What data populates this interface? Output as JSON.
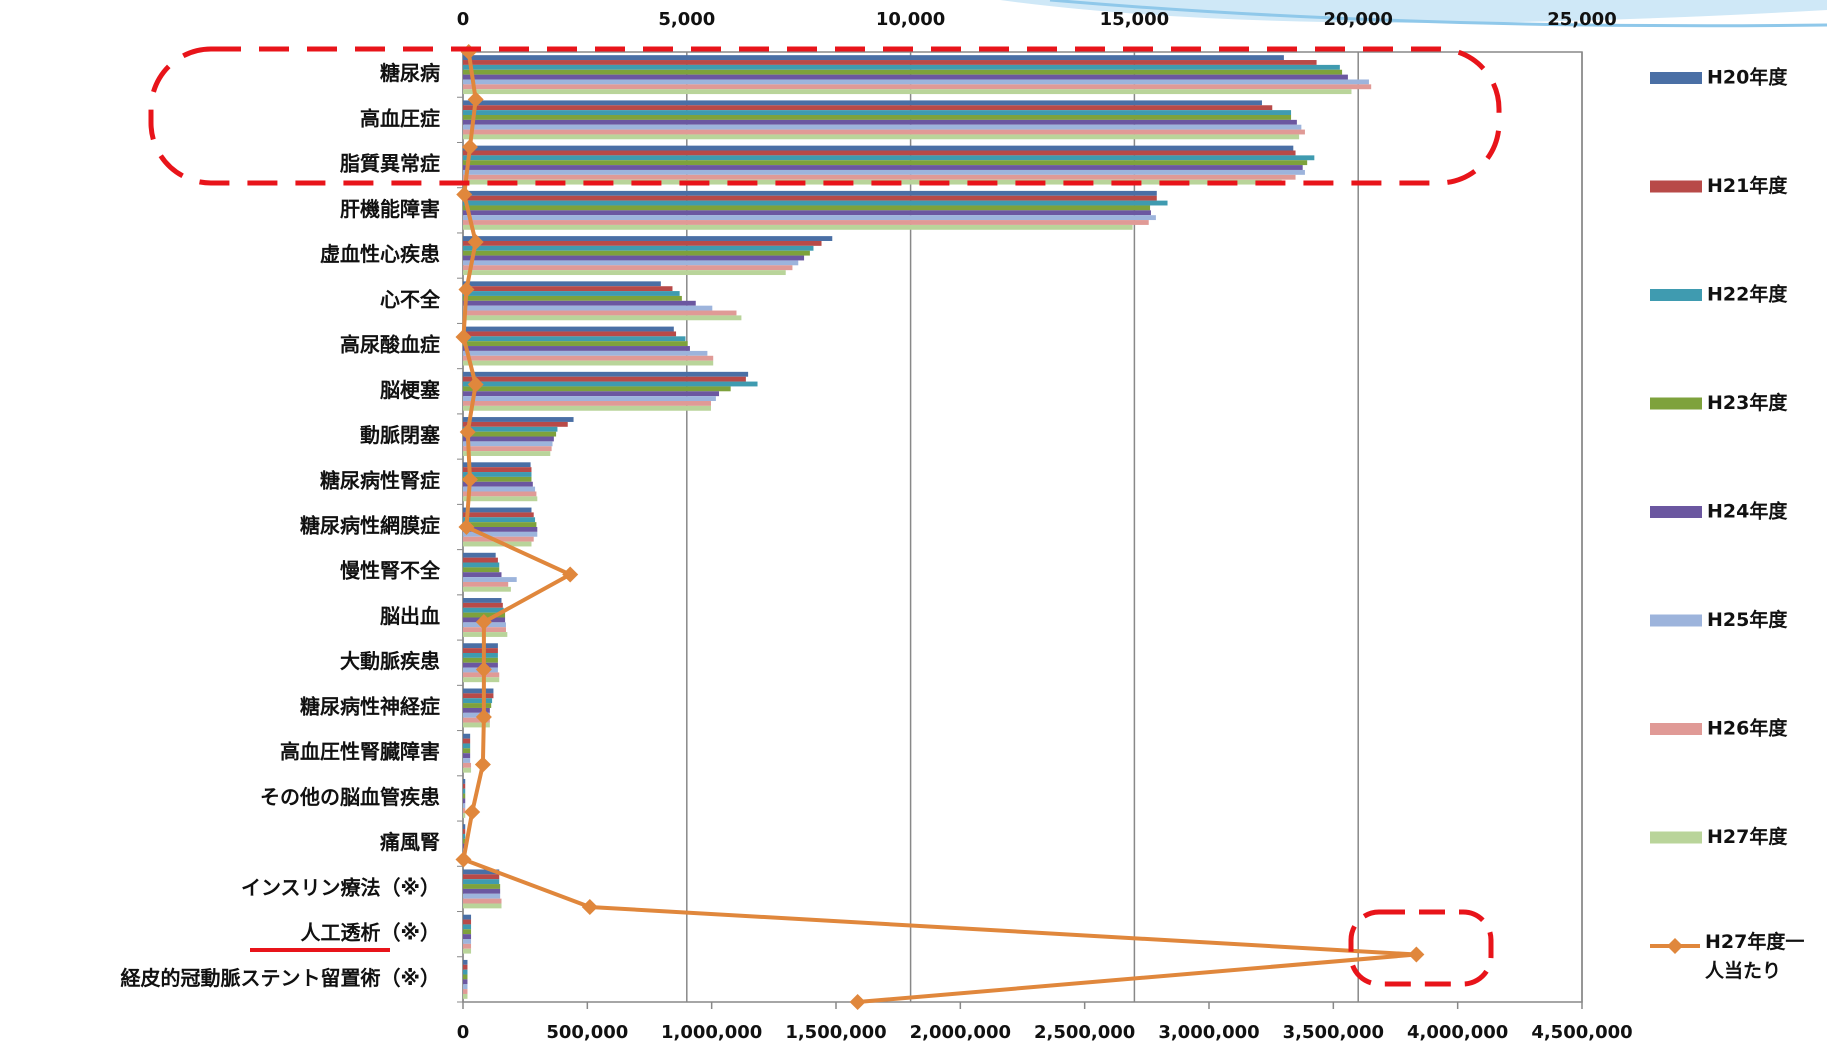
{
  "chart_data": {
    "type": "bar",
    "orientation": "horizontal",
    "categories": [
      "糖尿病",
      "高血圧症",
      "脂質異常症",
      "肝機能障害",
      "虚血性心疾患",
      "心不全",
      "高尿酸血症",
      "脳梗塞",
      "動脈閉塞",
      "糖尿病性腎症",
      "糖尿病性網膜症",
      "慢性腎不全",
      "脳出血",
      "大動脈疾患",
      "糖尿病性神経症",
      "高血圧性腎臓障害",
      "その他の脳血管疾患",
      "痛風腎",
      "インスリン療法（※）",
      "人工透析（※）",
      "経皮的冠動脈ステント留置術（※）"
    ],
    "series": [
      {
        "name": "H20年度",
        "color": "#4a6fa5",
        "values": [
          18340,
          17850,
          18550,
          15500,
          8250,
          4420,
          4710,
          6370,
          2470,
          1510,
          1530,
          730,
          860,
          780,
          680,
          160,
          50,
          50,
          810,
          180,
          100
        ]
      },
      {
        "name": "H21年度",
        "color": "#b84a48",
        "values": [
          19070,
          18080,
          18600,
          15500,
          8010,
          4680,
          4760,
          6320,
          2340,
          1530,
          1580,
          780,
          890,
          780,
          680,
          160,
          50,
          50,
          810,
          180,
          100
        ]
      },
      {
        "name": "H22年度",
        "color": "#3f9bb0",
        "values": [
          19590,
          18500,
          19020,
          15740,
          7830,
          4840,
          4970,
          6580,
          2110,
          1530,
          1610,
          810,
          910,
          780,
          650,
          160,
          50,
          50,
          810,
          180,
          100
        ]
      },
      {
        "name": "H23年度",
        "color": "#7ea23c",
        "values": [
          19640,
          18500,
          18860,
          15350,
          7750,
          4890,
          5020,
          5980,
          2080,
          1530,
          1640,
          810,
          940,
          780,
          630,
          160,
          50,
          50,
          830,
          180,
          100
        ]
      },
      {
        "name": "H24年度",
        "color": "#6b57a0",
        "values": [
          19770,
          18630,
          18760,
          15370,
          7620,
          5200,
          5070,
          5720,
          2030,
          1560,
          1660,
          860,
          940,
          780,
          600,
          160,
          50,
          50,
          830,
          180,
          100
        ]
      },
      {
        "name": "H25年度",
        "color": "#9db4dc",
        "values": [
          20240,
          18730,
          18810,
          15480,
          7490,
          5570,
          5460,
          5650,
          2000,
          1610,
          1660,
          1200,
          960,
          780,
          600,
          160,
          50,
          50,
          830,
          180,
          100
        ]
      },
      {
        "name": "H26年度",
        "color": "#e09a96",
        "values": [
          20290,
          18810,
          18600,
          15320,
          7360,
          6110,
          5590,
          5540,
          1980,
          1640,
          1580,
          1010,
          960,
          810,
          600,
          180,
          50,
          50,
          860,
          180,
          100
        ]
      },
      {
        "name": "H27年度",
        "color": "#b9d49a",
        "values": [
          19850,
          18680,
          18290,
          14960,
          7210,
          6220,
          5590,
          5540,
          1950,
          1660,
          1530,
          1070,
          990,
          810,
          600,
          180,
          50,
          50,
          860,
          180,
          100
        ]
      },
      {
        "name": "H27年度一人当たり",
        "color": "#e0873c",
        "type": "line",
        "axis": "x2",
        "values": [
          23000,
          51000,
          28000,
          5000,
          51000,
          14000,
          2000,
          51000,
          19000,
          28000,
          14000,
          431000,
          84000,
          84000,
          84000,
          80000,
          37000,
          2000,
          510000,
          3834000,
          1587000
        ]
      }
    ],
    "xlim": [
      0,
      25000
    ],
    "xticks": [
      0,
      {
        "value": 5000,
        "label": "5,000"
      },
      {
        "value": 10000,
        "label": "10,000"
      },
      {
        "value": 15000,
        "label": "15,000"
      },
      {
        "value": 20000,
        "label": "20,000"
      },
      {
        "value": 25000,
        "label": "25,000"
      }
    ],
    "x2lim": [
      0,
      4500000
    ],
    "x2ticks": [
      0,
      {
        "value": 500000,
        "label": "500,000"
      },
      {
        "value": 1000000,
        "label": "1,000,000"
      },
      {
        "value": 1500000,
        "label": "1,500,000"
      },
      {
        "value": 2000000,
        "label": "2,000,000"
      },
      {
        "value": 2500000,
        "label": "2,500,000"
      },
      {
        "value": 3000000,
        "label": "3,000,000"
      },
      {
        "value": 3500000,
        "label": "3,500,000"
      },
      {
        "value": 4000000,
        "label": "4,000,000"
      },
      {
        "value": 4500000,
        "label": "4,500,000"
      }
    ],
    "grid": true,
    "legend": "right"
  }
}
